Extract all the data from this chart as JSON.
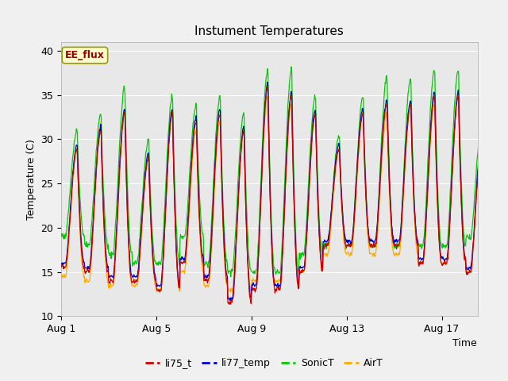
{
  "title": "Instument Temperatures",
  "xlabel": "Time",
  "ylabel": "Temperature (C)",
  "ylim": [
    10,
    41
  ],
  "yticks": [
    10,
    15,
    20,
    25,
    30,
    35,
    40
  ],
  "xlim_days": [
    0,
    17.5
  ],
  "xtick_positions": [
    0,
    4,
    8,
    12,
    16
  ],
  "xtick_labels": [
    "Aug 1",
    "Aug 5",
    "Aug 9",
    "Aug 13",
    "Aug 17"
  ],
  "colors": {
    "li75_t": "#cc0000",
    "li77_temp": "#0000cc",
    "SonicT": "#00cc00",
    "AirT": "#ffaa00"
  },
  "annotation_text": "EE_flux",
  "annotation_color": "#990000",
  "annotation_bg": "#ffffcc",
  "annotation_edge": "#999900",
  "fig_bg": "#f0f0f0",
  "plot_bg": "#e8e8e8",
  "grid_color": "#ffffff",
  "n_days": 18,
  "points_per_day": 48,
  "day_peaks_li75": [
    29,
    31,
    33,
    28,
    33,
    32,
    33,
    31,
    36,
    35,
    33,
    29,
    33,
    34,
    34,
    35,
    35,
    30
  ],
  "day_peaks_li77": [
    29.5,
    31.5,
    33.5,
    28.5,
    33.5,
    32.5,
    33.5,
    31.5,
    36.5,
    35.5,
    33.5,
    29.5,
    33.5,
    34.5,
    34.5,
    35.5,
    35.5,
    30.5
  ],
  "day_peaks_sonic": [
    31,
    33,
    36,
    30,
    35,
    34,
    35,
    33,
    38,
    38,
    35,
    30.5,
    35,
    37,
    37,
    38,
    38,
    32
  ],
  "day_peaks_air": [
    29,
    32,
    33,
    28,
    33,
    31,
    32,
    31,
    35,
    34,
    33,
    29,
    33,
    33,
    34,
    34,
    35,
    30
  ],
  "day_night_li75": [
    15.5,
    15,
    14,
    14,
    13,
    16,
    14,
    11.5,
    13,
    13,
    15,
    18,
    18,
    18,
    18,
    16,
    16,
    15
  ],
  "day_night_li77": [
    16,
    15.5,
    14.5,
    14.5,
    13.5,
    16.5,
    14.5,
    12,
    13.5,
    13.5,
    15.5,
    18.5,
    18.5,
    18.5,
    18.5,
    16.5,
    16.5,
    15.5
  ],
  "day_night_sonic": [
    19,
    18,
    17,
    16,
    16,
    19,
    16,
    15,
    15,
    15,
    17,
    18,
    18,
    18,
    18,
    18,
    18,
    19
  ],
  "day_night_air": [
    14.5,
    14,
    13.5,
    13.5,
    13,
    15,
    13.5,
    13,
    14,
    14,
    15,
    17,
    17,
    17,
    17,
    16,
    16,
    15
  ]
}
